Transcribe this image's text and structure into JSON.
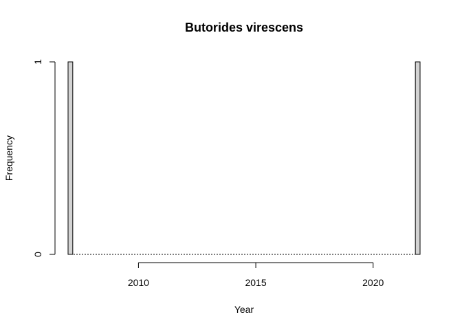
{
  "chart_data": {
    "type": "bar",
    "title": "Butorides virescens",
    "xlabel": "Year",
    "ylabel": "Frequency",
    "x_ticks": [
      2010,
      2015,
      2020
    ],
    "y_ticks": [
      0,
      1
    ],
    "xlim": [
      2007,
      2022
    ],
    "ylim": [
      0,
      1
    ],
    "bins": [
      {
        "start": 2007.0,
        "end": 2007.2,
        "count": 1
      },
      {
        "start": 2021.8,
        "end": 2022.0,
        "count": 1
      }
    ],
    "bar_fill": "#d3d3d3",
    "grid": false
  }
}
